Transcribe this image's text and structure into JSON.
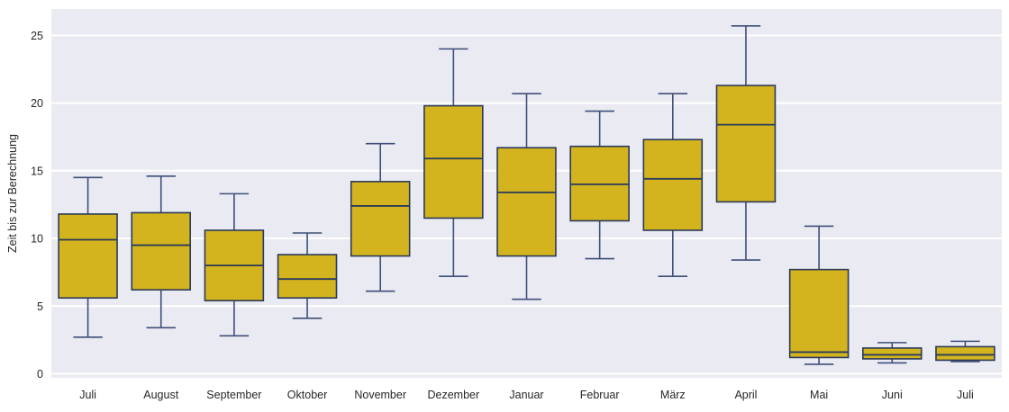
{
  "chart_data": {
    "type": "box",
    "ylabel": "Zeit bis zur Berechnung",
    "xlabel": "",
    "grid": true,
    "legend": false,
    "yticks": [
      0,
      5,
      10,
      15,
      20,
      25
    ],
    "ylim": [
      -0.3,
      26.95
    ],
    "categories": [
      "Juli",
      "August",
      "September",
      "Oktober",
      "November",
      "Dezember",
      "Januar",
      "Februar",
      "März",
      "April",
      "Mai",
      "Juni",
      "Juli"
    ],
    "boxes": [
      {
        "label": "Juli",
        "whisker_low": 2.7,
        "q1": 5.6,
        "median": 9.9,
        "q3": 11.8,
        "whisker_high": 14.5
      },
      {
        "label": "August",
        "whisker_low": 3.4,
        "q1": 6.2,
        "median": 9.5,
        "q3": 11.9,
        "whisker_high": 14.6
      },
      {
        "label": "September",
        "whisker_low": 2.8,
        "q1": 5.4,
        "median": 8.0,
        "q3": 10.6,
        "whisker_high": 13.3
      },
      {
        "label": "Oktober",
        "whisker_low": 4.1,
        "q1": 5.6,
        "median": 7.0,
        "q3": 8.8,
        "whisker_high": 10.4
      },
      {
        "label": "November",
        "whisker_low": 6.1,
        "q1": 8.7,
        "median": 12.4,
        "q3": 14.2,
        "whisker_high": 17.0
      },
      {
        "label": "Dezember",
        "whisker_low": 7.2,
        "q1": 11.5,
        "median": 15.9,
        "q3": 19.8,
        "whisker_high": 24.0
      },
      {
        "label": "Januar",
        "whisker_low": 5.5,
        "q1": 8.7,
        "median": 13.4,
        "q3": 16.7,
        "whisker_high": 20.7
      },
      {
        "label": "Februar",
        "whisker_low": 8.5,
        "q1": 11.3,
        "median": 14.0,
        "q3": 16.8,
        "whisker_high": 19.4
      },
      {
        "label": "März",
        "whisker_low": 7.2,
        "q1": 10.6,
        "median": 14.4,
        "q3": 17.3,
        "whisker_high": 20.7
      },
      {
        "label": "April",
        "whisker_low": 8.4,
        "q1": 12.7,
        "median": 18.4,
        "q3": 21.3,
        "whisker_high": 25.7
      },
      {
        "label": "Mai",
        "whisker_low": 0.7,
        "q1": 1.2,
        "median": 1.6,
        "q3": 7.7,
        "whisker_high": 10.9
      },
      {
        "label": "Juni",
        "whisker_low": 0.8,
        "q1": 1.1,
        "median": 1.4,
        "q3": 1.9,
        "whisker_high": 2.3
      },
      {
        "label": "Juli",
        "whisker_low": 0.9,
        "q1": 1.0,
        "median": 1.4,
        "q3": 2.0,
        "whisker_high": 2.4
      }
    ],
    "colors": {
      "plot_background": "#eaeaf2",
      "gridline": "#ffffff",
      "box_fill": "#d3b41f",
      "box_edge": "#2a3a5a",
      "whisker": "#3e4e78",
      "tick_text": "#262626",
      "figure_background": "#ffffff"
    }
  }
}
